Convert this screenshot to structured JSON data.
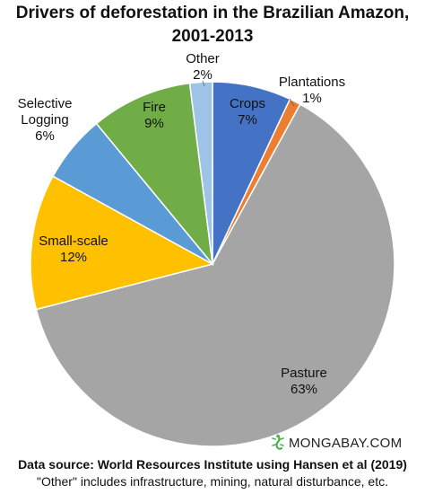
{
  "title_line1": "Drivers of deforestation in the Brazilian Amazon,",
  "title_line2": "2001-2013",
  "brand": "MONGABAY.COM",
  "source": "Data source: World Resources Institute using Hansen et al  (2019)",
  "note": "\"Other\" includes infrastructure, mining, natural disturbance, etc.",
  "chart_data": {
    "type": "pie",
    "title": "Drivers of deforestation in the Brazilian Amazon, 2001-2013",
    "start_angle_deg": 0,
    "direction": "clockwise",
    "slices": [
      {
        "name": "Crops",
        "value": 7,
        "label": "7%",
        "color": "#4472c4"
      },
      {
        "name": "Plantations",
        "value": 1,
        "label": "1%",
        "color": "#ed7d31"
      },
      {
        "name": "Pasture",
        "value": 63,
        "label": "63%",
        "color": "#a5a5a5"
      },
      {
        "name": "Small-scale",
        "value": 12,
        "label": "12%",
        "color": "#ffc000"
      },
      {
        "name": "Selective Logging",
        "value": 6,
        "label": "6%",
        "color": "#5b9bd5"
      },
      {
        "name": "Fire",
        "value": 9,
        "label": "9%",
        "color": "#70ad47"
      },
      {
        "name": "Other",
        "value": 2,
        "label": "2%",
        "color": "#9dc3e6"
      }
    ]
  }
}
